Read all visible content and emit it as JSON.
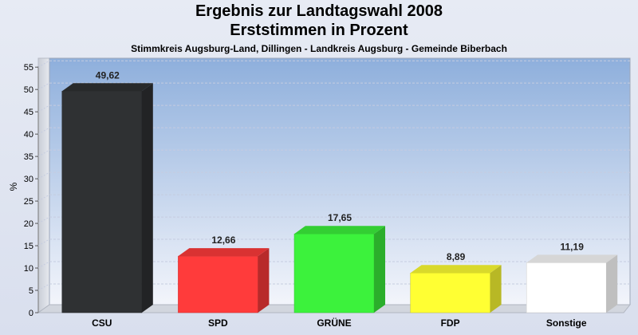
{
  "chart_data": {
    "type": "bar",
    "title": "Ergebnis zur Landtagswahl 2008",
    "subtitle1": "Erststimmen in Prozent",
    "subtitle2": "Stimmkreis Augsburg-Land, Dillingen - Landkreis Augsburg - Gemeinde Biberbach",
    "ylabel": "%",
    "ylim": [
      0,
      57
    ],
    "yticks": [
      0,
      5,
      10,
      15,
      20,
      25,
      30,
      35,
      40,
      45,
      50,
      55
    ],
    "grid": true,
    "categories": [
      "CSU",
      "SPD",
      "GRÜNE",
      "FDP",
      "Sonstige"
    ],
    "values": [
      49.62,
      12.66,
      17.65,
      8.89,
      11.19
    ],
    "value_labels": [
      "49,62",
      "12,66",
      "17,65",
      "8,89",
      "11,19"
    ],
    "colors": [
      "#2f3133",
      "#ff3b3b",
      "#3cf23c",
      "#ffff33",
      "#ffffff"
    ]
  }
}
